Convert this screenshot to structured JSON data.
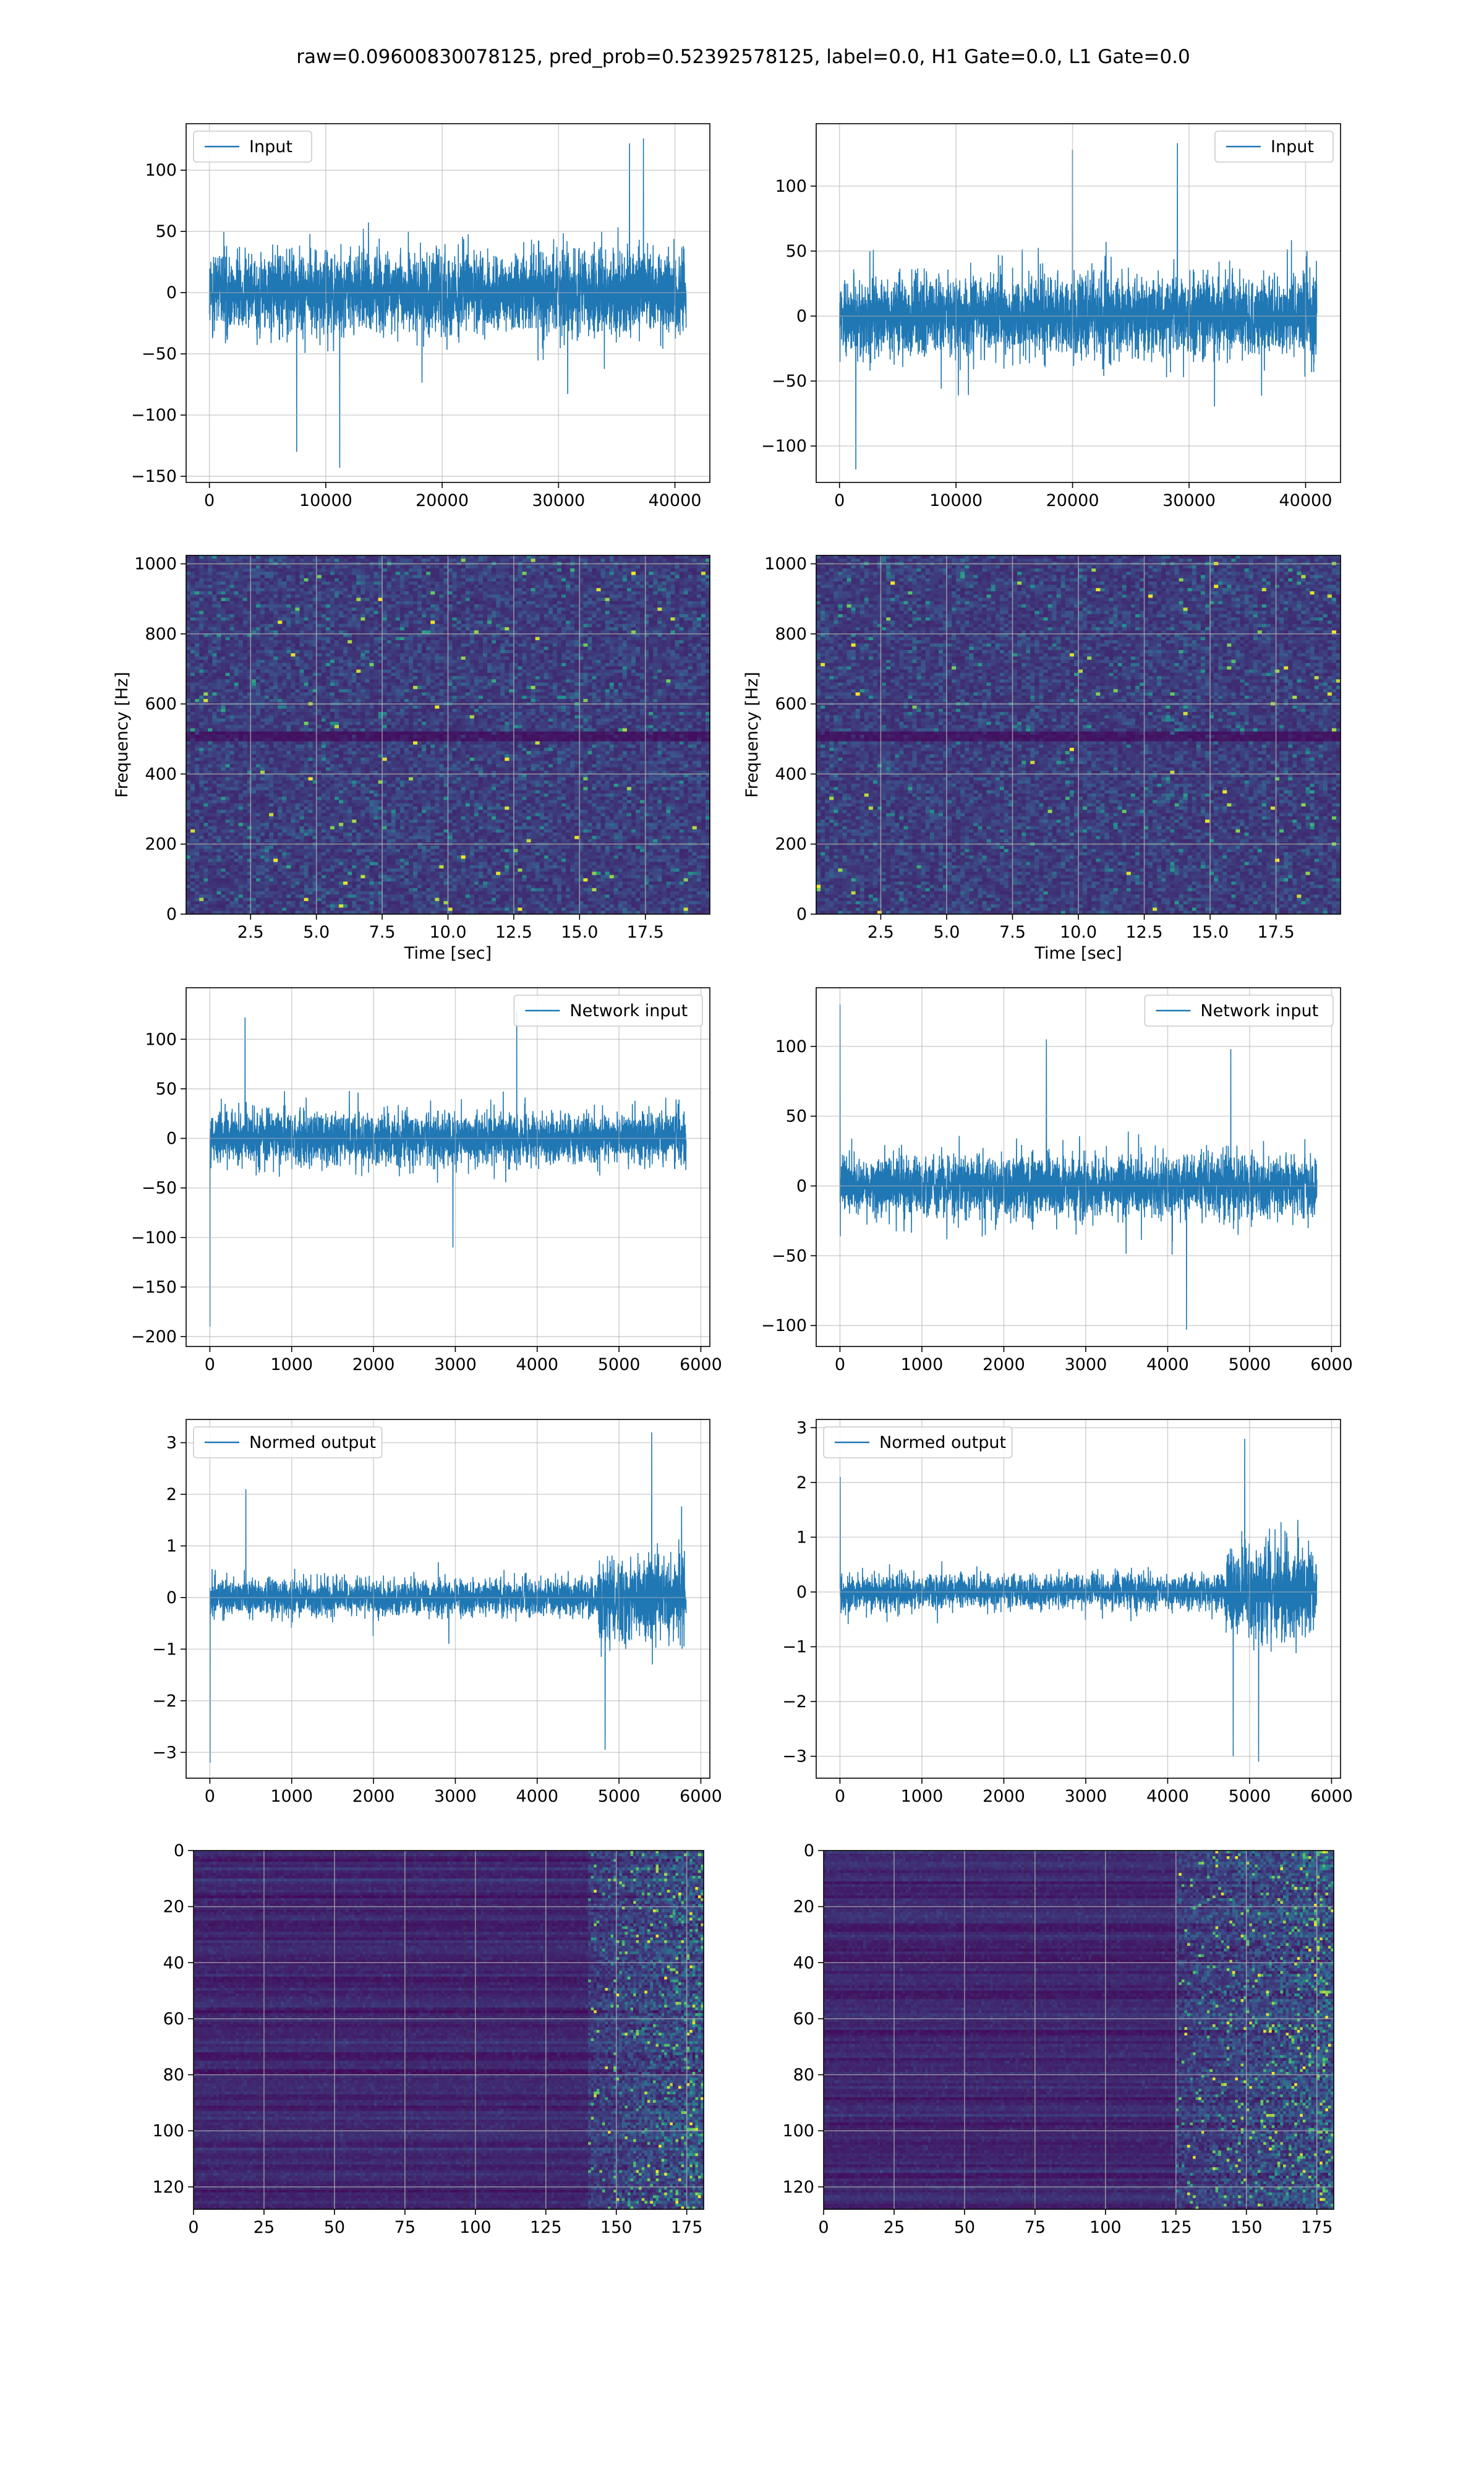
{
  "title": "raw=0.09600830078125, pred_prob=0.52392578125, label=0.0, H1 Gate=0.0, L1 Gate=0.0",
  "colors": {
    "series": "#1f77b4",
    "grid": "#b0b0b0",
    "axis": "#000000",
    "colormap": "viridis"
  },
  "chart_data": [
    {
      "id": "input-h1",
      "type": "line",
      "legend": "Input",
      "legend_loc": "upper left",
      "grid": true,
      "xlim": [
        -2000,
        43000
      ],
      "ylim": [
        -155,
        138
      ],
      "xticks": [
        0,
        10000,
        20000,
        30000,
        40000
      ],
      "yticks": [
        -150,
        -100,
        -50,
        0,
        50,
        100
      ],
      "n_samples": 40960,
      "baseline": 0,
      "envelope": [
        -65,
        65
      ],
      "peaks": [
        {
          "x": 11200,
          "y": -143
        },
        {
          "x": 37300,
          "y": 126
        },
        {
          "x": 36100,
          "y": 122
        },
        {
          "x": 7500,
          "y": -130
        }
      ]
    },
    {
      "id": "input-l1",
      "type": "line",
      "legend": "Input",
      "legend_loc": "upper right",
      "grid": true,
      "xlim": [
        -2000,
        43000
      ],
      "ylim": [
        -128,
        148
      ],
      "xticks": [
        0,
        10000,
        20000,
        30000,
        40000
      ],
      "yticks": [
        -100,
        -50,
        0,
        50,
        100
      ],
      "n_samples": 40960,
      "baseline": 0,
      "envelope": [
        -60,
        60
      ],
      "peaks": [
        {
          "x": 1400,
          "y": -118
        },
        {
          "x": 29000,
          "y": 133
        },
        {
          "x": 20000,
          "y": 128
        }
      ]
    },
    {
      "id": "spec-h1",
      "type": "heatmap",
      "colormap": "viridis",
      "grid": true,
      "xlabel": "Time [sec]",
      "ylabel": "Frequency [Hz]",
      "xlim": [
        0.05,
        19.95
      ],
      "ylim": [
        0,
        1024
      ],
      "xticks": [
        2.5,
        5.0,
        7.5,
        10.0,
        12.5,
        15.0,
        17.5
      ],
      "xtick_labels": [
        "2.5",
        "5.0",
        "7.5",
        "10.0",
        "12.5",
        "15.0",
        "17.5"
      ],
      "yticks": [
        0,
        200,
        400,
        600,
        800,
        1000
      ],
      "dark_band_hz": [
        490,
        520
      ]
    },
    {
      "id": "spec-l1",
      "type": "heatmap",
      "colormap": "viridis",
      "grid": true,
      "xlabel": "Time [sec]",
      "ylabel": "Frequency [Hz]",
      "xlim": [
        0.05,
        19.95
      ],
      "ylim": [
        0,
        1024
      ],
      "xticks": [
        2.5,
        5.0,
        7.5,
        10.0,
        12.5,
        15.0,
        17.5
      ],
      "xtick_labels": [
        "2.5",
        "5.0",
        "7.5",
        "10.0",
        "12.5",
        "15.0",
        "17.5"
      ],
      "yticks": [
        0,
        200,
        400,
        600,
        800,
        1000
      ],
      "dark_band_hz": [
        490,
        520
      ]
    },
    {
      "id": "network-input-h1",
      "type": "line",
      "legend": "Network input",
      "legend_loc": "upper right",
      "grid": true,
      "xlim": [
        -290,
        6110
      ],
      "ylim": [
        -210,
        152
      ],
      "xticks": [
        0,
        1000,
        2000,
        3000,
        4000,
        5000,
        6000
      ],
      "yticks": [
        -200,
        -150,
        -100,
        -50,
        0,
        50,
        100
      ],
      "n_samples": 5820,
      "baseline": 0,
      "envelope": [
        -50,
        50
      ],
      "peaks": [
        {
          "x": 2,
          "y": -190
        },
        {
          "x": 430,
          "y": 122
        },
        {
          "x": 3750,
          "y": 128
        },
        {
          "x": 2970,
          "y": -110
        }
      ]
    },
    {
      "id": "network-input-l1",
      "type": "line",
      "legend": "Network input",
      "legend_loc": "upper right",
      "grid": true,
      "xlim": [
        -290,
        6110
      ],
      "ylim": [
        -115,
        142
      ],
      "xticks": [
        0,
        1000,
        2000,
        3000,
        4000,
        5000,
        6000
      ],
      "yticks": [
        -100,
        -50,
        0,
        50,
        100
      ],
      "n_samples": 5820,
      "baseline": 0,
      "envelope": [
        -42,
        42
      ],
      "peaks": [
        {
          "x": 2,
          "y": 130
        },
        {
          "x": 2520,
          "y": 105
        },
        {
          "x": 4230,
          "y": -103
        },
        {
          "x": 4770,
          "y": 98
        }
      ]
    },
    {
      "id": "normed-output-h1",
      "type": "line",
      "legend": "Normed output",
      "legend_loc": "upper left",
      "grid": true,
      "xlim": [
        -290,
        6110
      ],
      "ylim": [
        -3.5,
        3.45
      ],
      "xticks": [
        0,
        1000,
        2000,
        3000,
        4000,
        5000,
        6000
      ],
      "yticks": [
        -3,
        -2,
        -1,
        0,
        1,
        2,
        3
      ],
      "n_samples": 5820,
      "baseline": 0,
      "segments": [
        {
          "x_start": 0,
          "x_end": 4740,
          "envelope": [
            -0.7,
            0.7
          ]
        },
        {
          "x_start": 4740,
          "x_end": 5820,
          "envelope": [
            -1.7,
            1.7
          ]
        }
      ],
      "peaks": [
        {
          "x": 3,
          "y": -3.2
        },
        {
          "x": 5400,
          "y": 3.2
        },
        {
          "x": 4830,
          "y": -2.95
        },
        {
          "x": 440,
          "y": 2.1
        }
      ]
    },
    {
      "id": "normed-output-l1",
      "type": "line",
      "legend": "Normed output",
      "legend_loc": "upper left",
      "grid": true,
      "xlim": [
        -290,
        6110
      ],
      "ylim": [
        -3.4,
        3.15
      ],
      "xticks": [
        0,
        1000,
        2000,
        3000,
        4000,
        5000,
        6000
      ],
      "yticks": [
        -3,
        -2,
        -1,
        0,
        1,
        2,
        3
      ],
      "n_samples": 5820,
      "baseline": 0,
      "segments": [
        {
          "x_start": 0,
          "x_end": 4700,
          "envelope": [
            -0.6,
            0.6
          ]
        },
        {
          "x_start": 4700,
          "x_end": 5820,
          "envelope": [
            -1.5,
            1.5
          ]
        }
      ],
      "peaks": [
        {
          "x": 3,
          "y": 2.1
        },
        {
          "x": 4940,
          "y": 2.8
        },
        {
          "x": 5110,
          "y": -3.1
        },
        {
          "x": 4800,
          "y": -3.0
        }
      ]
    },
    {
      "id": "feature-map-h1",
      "type": "heatmap",
      "colormap": "viridis",
      "grid": true,
      "xlim": [
        0,
        181
      ],
      "ylim": [
        128,
        0
      ],
      "y_inverted": true,
      "xticks": [
        0,
        25,
        50,
        75,
        100,
        125,
        150,
        175
      ],
      "yticks": [
        0,
        20,
        40,
        60,
        80,
        100,
        120
      ],
      "shape": [
        128,
        181
      ],
      "bright_region_x_from": 140
    },
    {
      "id": "feature-map-l1",
      "type": "heatmap",
      "colormap": "viridis",
      "grid": true,
      "xlim": [
        0,
        181
      ],
      "ylim": [
        128,
        0
      ],
      "y_inverted": true,
      "xticks": [
        0,
        25,
        50,
        75,
        100,
        125,
        150,
        175
      ],
      "yticks": [
        0,
        20,
        40,
        60,
        80,
        100,
        120
      ],
      "shape": [
        128,
        181
      ],
      "bright_region_x_from": 125
    }
  ]
}
